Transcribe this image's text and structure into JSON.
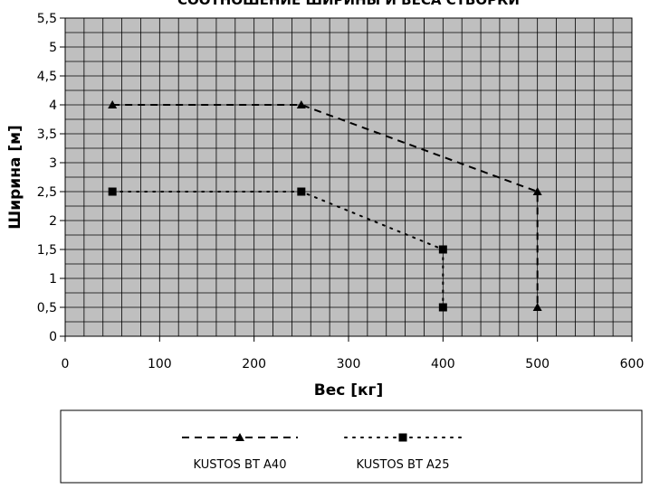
{
  "chart_data": {
    "type": "line",
    "title": "СООТНОШЕНИЕ ШИРИНЫ И ВЕСА СТВОРКИ",
    "xlabel": "Вес [кг]",
    "ylabel": "Ширина [м]",
    "xlim": [
      0,
      600
    ],
    "ylim": [
      0,
      5.5
    ],
    "x_ticks": [
      "0",
      "100",
      "200",
      "300",
      "400",
      "500",
      "600"
    ],
    "y_ticks": [
      "0",
      "0,5",
      "1",
      "1,5",
      "2",
      "2,5",
      "3",
      "3,5",
      "4",
      "4,5",
      "5",
      "5,5"
    ],
    "grid": true,
    "legend_position": "bottom",
    "plot_background": "#bfbfbf",
    "series": [
      {
        "name": "KUSTOS BT A40",
        "marker": "triangle",
        "line_style": "dashed",
        "color": "#000000",
        "points": [
          {
            "x": 50,
            "y": 4
          },
          {
            "x": 250,
            "y": 4
          },
          {
            "x": 500,
            "y": 2.5
          },
          {
            "x": 500,
            "y": 0.5
          }
        ]
      },
      {
        "name": "KUSTOS BT A25",
        "marker": "square",
        "line_style": "dotted",
        "color": "#000000",
        "points": [
          {
            "x": 50,
            "y": 2.5
          },
          {
            "x": 250,
            "y": 2.5
          },
          {
            "x": 400,
            "y": 1.5
          },
          {
            "x": 400,
            "y": 0.5
          }
        ]
      }
    ]
  }
}
